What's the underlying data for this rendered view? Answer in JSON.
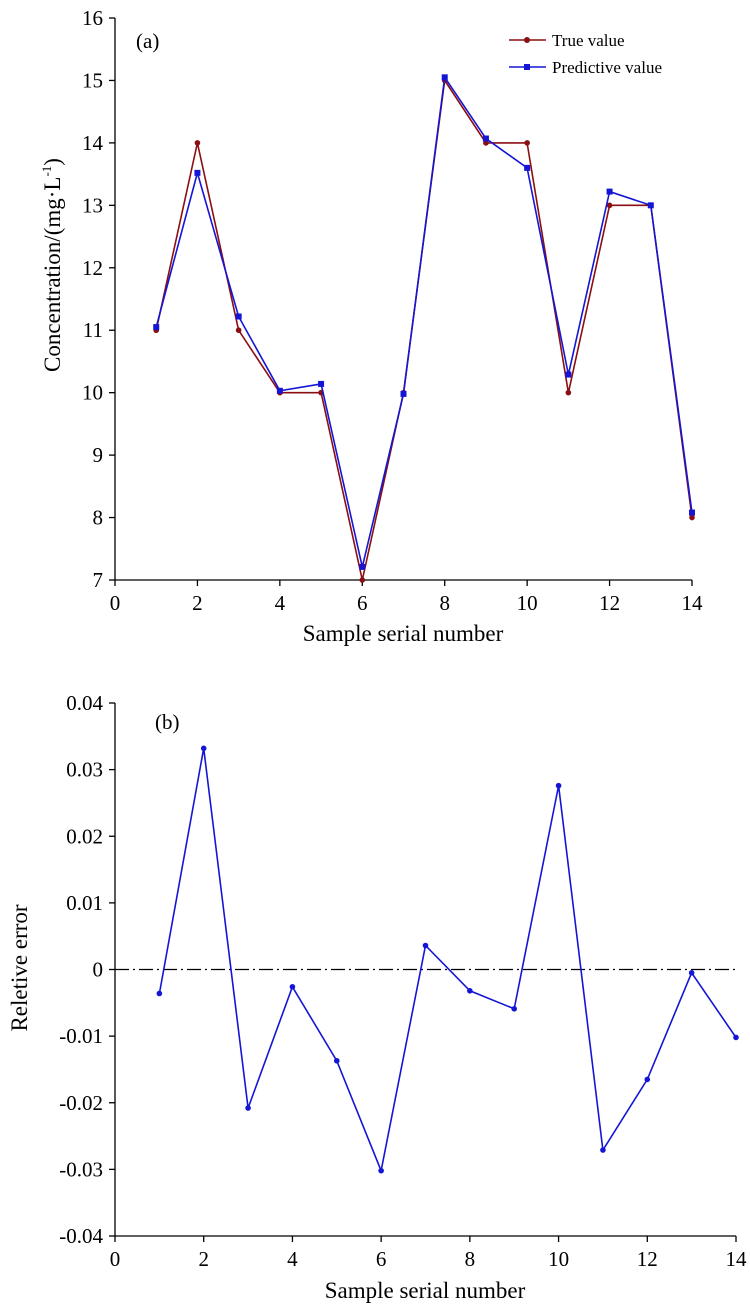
{
  "colors": {
    "true_value": "#8b0f12",
    "predictive_value": "#1515d6",
    "axis": "#000000",
    "zero_line": "#000000"
  },
  "chart_data": [
    {
      "type": "line",
      "panel_label": "(a)",
      "xlabel": "Sample serial number",
      "ylabel": "Concentration/(mg·L",
      "ylabel_sup": "-1",
      "ylabel_close": ")",
      "xlim": [
        0,
        14
      ],
      "ylim": [
        7,
        16
      ],
      "xticks": [
        "0",
        "2",
        "4",
        "6",
        "8",
        "10",
        "12",
        "14"
      ],
      "yticks": [
        "7",
        "8",
        "9",
        "10",
        "11",
        "12",
        "13",
        "14",
        "15",
        "16"
      ],
      "legend_position": "top-right",
      "x": [
        1,
        2,
        3,
        4,
        5,
        6,
        7,
        8,
        9,
        10,
        11,
        12,
        13,
        14
      ],
      "series": [
        {
          "name": "True value",
          "marker": "circle",
          "values": [
            11,
            14,
            11,
            10,
            10,
            7,
            10,
            15,
            14,
            14,
            10,
            13,
            13,
            8
          ]
        },
        {
          "name": "Predictive value",
          "marker": "square",
          "values": [
            11.05,
            13.52,
            11.22,
            10.03,
            10.14,
            7.21,
            9.98,
            15.05,
            14.07,
            13.6,
            10.29,
            13.22,
            13.0,
            8.08
          ]
        }
      ]
    },
    {
      "type": "line",
      "panel_label": "(b)",
      "xlabel": "Sample serial number",
      "ylabel": "Reletive error",
      "xlim": [
        0,
        14
      ],
      "ylim": [
        -0.04,
        0.04
      ],
      "xticks": [
        "0",
        "2",
        "4",
        "6",
        "8",
        "10",
        "12",
        "14"
      ],
      "yticks": [
        "-0.04",
        "-0.03",
        "-0.02",
        "-0.01",
        "0",
        "0.01",
        "0.02",
        "0.03",
        "0.04"
      ],
      "reference_line": 0,
      "x": [
        1,
        2,
        3,
        4,
        5,
        6,
        7,
        8,
        9,
        10,
        11,
        12,
        13,
        14
      ],
      "series": [
        {
          "marker": "circle",
          "values": [
            -0.0036,
            0.0332,
            -0.0208,
            -0.0026,
            -0.0137,
            -0.0302,
            0.0036,
            -0.0032,
            -0.0059,
            0.0276,
            -0.0271,
            -0.0165,
            -0.0005,
            -0.0102
          ]
        }
      ]
    }
  ]
}
